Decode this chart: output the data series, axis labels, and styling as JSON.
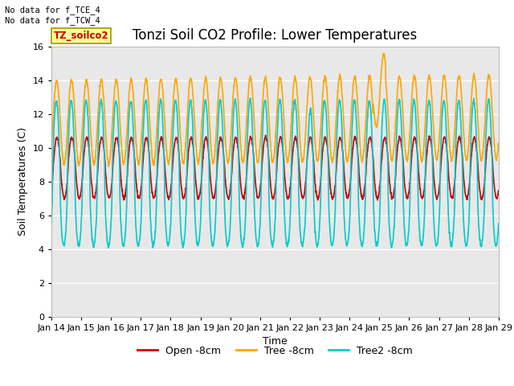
{
  "title": "Tonzi Soil CO2 Profile: Lower Temperatures",
  "ylabel": "Soil Temperatures (C)",
  "xlabel": "Time",
  "top_left_text": "No data for f_TCE_4\nNo data for f_TCW_4",
  "legend_label_text": "TZ_soilco2",
  "ylim": [
    0,
    16
  ],
  "yticks": [
    0,
    2,
    4,
    6,
    8,
    10,
    12,
    14,
    16
  ],
  "xtick_labels": [
    "Jan 14",
    "Jan 15",
    "Jan 16",
    "Jan 17",
    "Jan 18",
    "Jan 19",
    "Jan 20",
    "Jan 21",
    "Jan 22",
    "Jan 23",
    "Jan 24",
    "Jan 25",
    "Jan 26",
    "Jan 27",
    "Jan 28",
    "Jan 29"
  ],
  "series": {
    "open": {
      "label": "Open -8cm",
      "color": "#cc0000",
      "linewidth": 1.2
    },
    "tree": {
      "label": "Tree -8cm",
      "color": "#ffa500",
      "linewidth": 1.2
    },
    "tree2": {
      "label": "Tree2 -8cm",
      "color": "#00cccc",
      "linewidth": 1.2
    }
  },
  "bg_color": "#ffffff",
  "plot_bg_color": "#e8e8e8",
  "grid_color": "white",
  "title_fontsize": 12,
  "axis_label_fontsize": 9,
  "tick_fontsize": 8
}
